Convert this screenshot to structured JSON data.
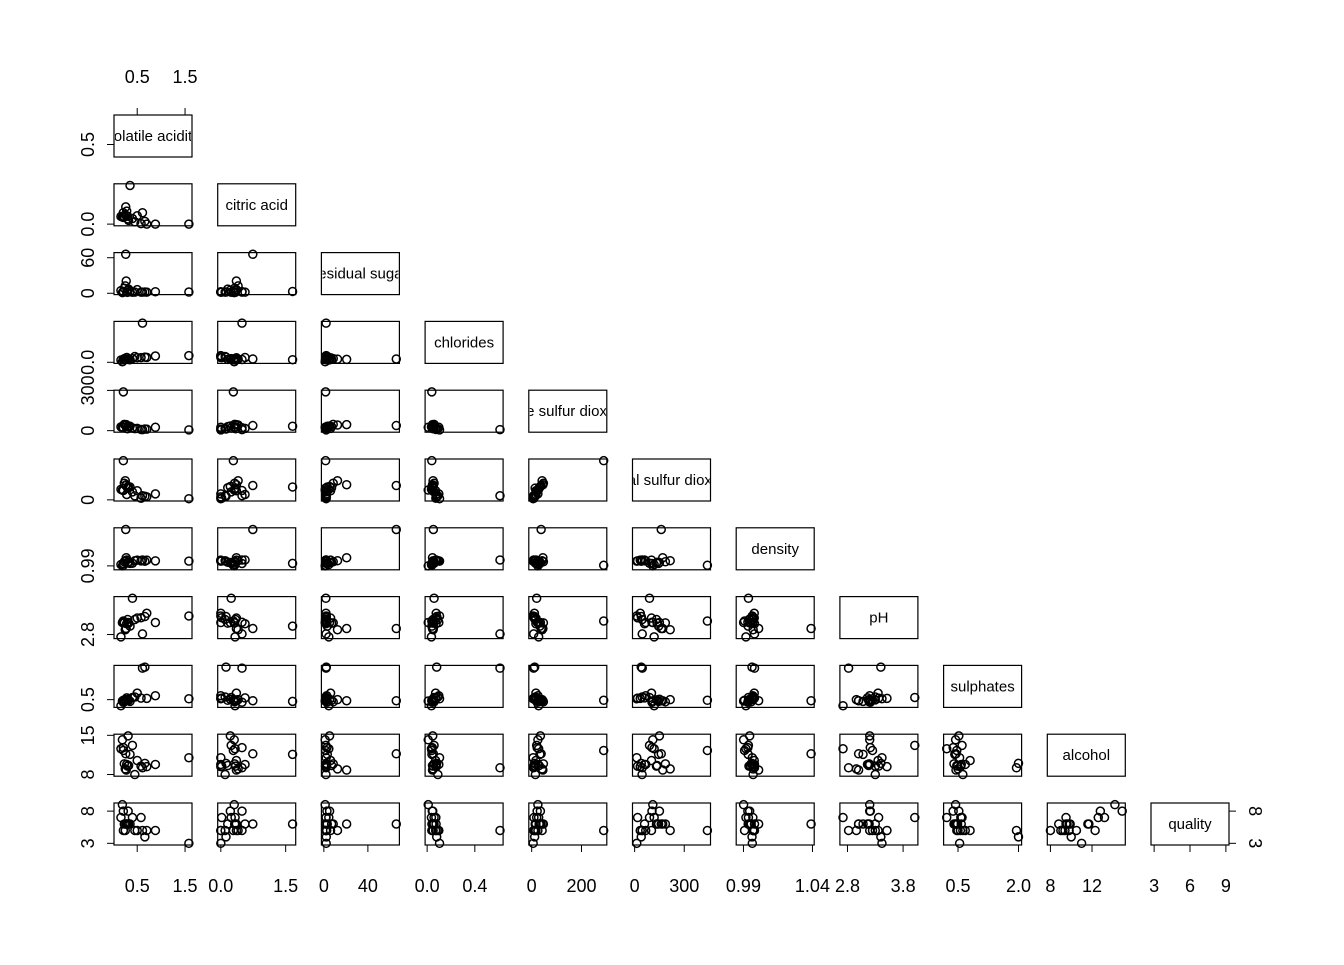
{
  "chart_data": {
    "type": "scatter_matrix",
    "variables": [
      {
        "name": "volatile acidity",
        "lim": [
          0.08,
          1.58
        ],
        "xticks": [
          0.5,
          1.5
        ],
        "yticks": [
          0.5
        ]
      },
      {
        "name": "citric acid",
        "lim": [
          0,
          1.66
        ],
        "xticks": [
          {
            "value": 0,
            "label": "0.0"
          },
          1.5
        ],
        "yticks": [
          {
            "value": 0,
            "label": "0.0"
          }
        ]
      },
      {
        "name": "residual sugar",
        "lim": [
          0.6,
          65.8
        ],
        "xticks": [
          0,
          40
        ],
        "yticks": [
          0,
          60
        ]
      },
      {
        "name": "chlorides",
        "lim": [
          0.009,
          0.611
        ],
        "xticks": [
          {
            "value": 0,
            "label": "0.0"
          },
          0.4
        ],
        "yticks": [
          {
            "value": 0,
            "label": "0.0"
          }
        ]
      },
      {
        "name": "free sulfur dioxide",
        "lim": [
          1,
          289
        ],
        "xticks": [
          0,
          200
        ],
        "yticks": [
          0,
          300
        ]
      },
      {
        "name": "total sulfur dioxide",
        "lim": [
          6,
          440
        ],
        "xticks": [
          0,
          300
        ],
        "yticks": [
          0
        ]
      },
      {
        "name": "density",
        "lim": [
          0.987,
          1.039
        ],
        "xticks": [
          0.99,
          1.04
        ],
        "yticks": [
          0.99
        ]
      },
      {
        "name": "pH",
        "lim": [
          2.72,
          4.01
        ],
        "xticks": [
          2.8,
          3.8
        ],
        "yticks": [
          2.8
        ]
      },
      {
        "name": "sulphates",
        "lim": [
          0.22,
          2.0
        ],
        "xticks": [
          0.5,
          {
            "value": 2,
            "label": "2.0"
          }
        ],
        "yticks": [
          0.5
        ]
      },
      {
        "name": "alcohol",
        "lim": [
          8,
          14.9
        ],
        "xticks": [
          8,
          12
        ],
        "yticks": [
          8,
          15
        ]
      },
      {
        "name": "quality",
        "lim": [
          3,
          9
        ],
        "xticks": [
          3,
          6,
          9
        ],
        "yticks": [
          3,
          8
        ]
      }
    ],
    "observations": [
      [
        0.7,
        0,
        1.9,
        0.076,
        11,
        34,
        0.9978,
        3.51,
        0.56,
        9.4,
        5
      ],
      [
        0.88,
        0,
        2.6,
        0.098,
        25,
        67,
        0.9968,
        3.2,
        0.68,
        9.8,
        5
      ],
      [
        0.28,
        0.56,
        1.9,
        0.075,
        17,
        60,
        0.998,
        3.16,
        0.58,
        9.8,
        6
      ],
      [
        0.27,
        0.36,
        20.7,
        0.045,
        45,
        170,
        1.001,
        3.0,
        0.45,
        8.8,
        6
      ],
      [
        0.3,
        0.34,
        1.6,
        0.049,
        14,
        132,
        0.994,
        3.3,
        0.49,
        9.5,
        6
      ],
      [
        0.23,
        0.32,
        8.5,
        0.058,
        47,
        186,
        0.9956,
        3.19,
        0.4,
        9.9,
        6
      ],
      [
        0.32,
        0.16,
        7.0,
        0.045,
        30,
        136,
        0.9949,
        3.18,
        0.47,
        9.6,
        6
      ],
      [
        0.58,
        0.02,
        2.0,
        0.073,
        9,
        18,
        0.9968,
        3.36,
        0.57,
        9.5,
        7
      ],
      [
        0.5,
        0.36,
        6.1,
        0.071,
        17,
        102,
        0.9978,
        3.35,
        0.8,
        10.5,
        5
      ],
      [
        0.21,
        0.49,
        2.8,
        0.043,
        22,
        105,
        0.9932,
        3.21,
        0.38,
        12.8,
        8
      ],
      [
        1.58,
        0,
        2.1,
        0.104,
        6,
        13,
        0.9964,
        3.42,
        0.54,
        11.0,
        3
      ],
      [
        0.35,
        1.66,
        3.1,
        0.04,
        33,
        145,
        0.9934,
        3.08,
        0.42,
        11.6,
        6
      ],
      [
        0.26,
        0.74,
        65.8,
        0.052,
        38,
        161,
        1.039,
        3.0,
        0.45,
        11.7,
        6
      ],
      [
        0.61,
        0.49,
        2.0,
        0.611,
        8,
        46,
        0.998,
        2.82,
        1.95,
        9.2,
        5
      ],
      [
        0.21,
        0.29,
        1.6,
        0.039,
        289,
        440,
        0.9908,
        3.25,
        0.47,
        12.3,
        5
      ],
      [
        0.25,
        0.4,
        12.4,
        0.05,
        42,
        215,
        0.997,
        2.96,
        0.5,
        9.0,
        5
      ],
      [
        0.4,
        0.24,
        1.8,
        0.058,
        20,
        90,
        0.9936,
        4.01,
        0.6,
        13.2,
        7
      ],
      [
        0.19,
        0.31,
        1.2,
        0.009,
        25,
        110,
        0.9901,
        3.2,
        0.44,
        14.2,
        9
      ],
      [
        0.66,
        0.12,
        2.2,
        0.08,
        12,
        40,
        0.9962,
        3.4,
        2.0,
        10.0,
        4
      ],
      [
        0.16,
        0.33,
        4.5,
        0.036,
        28,
        118,
        0.9918,
        2.72,
        0.22,
        12.6,
        7
      ],
      [
        0.45,
        0.1,
        1.9,
        0.09,
        15,
        45,
        0.997,
        3.3,
        0.62,
        8.0,
        5
      ],
      [
        0.31,
        0.22,
        5.2,
        0.047,
        35,
        150,
        0.9945,
        3.2,
        0.52,
        14.9,
        8
      ]
    ]
  }
}
